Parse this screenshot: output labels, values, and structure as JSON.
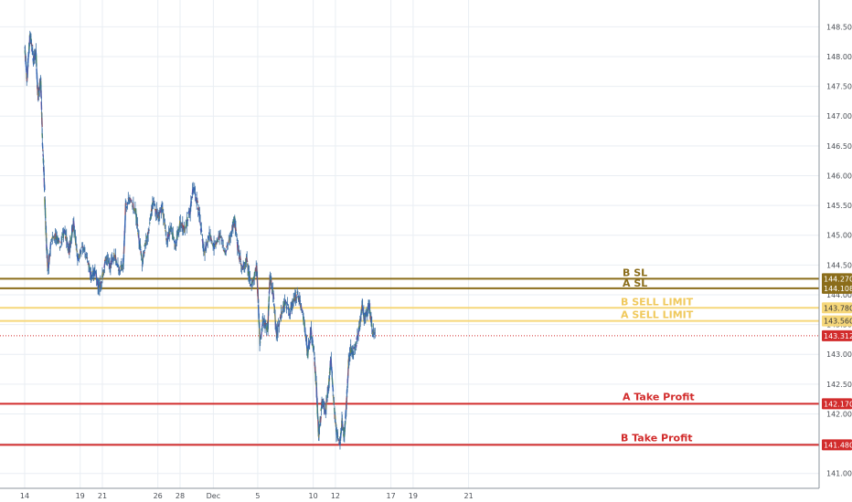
{
  "chart_data": {
    "type": "line",
    "x_tick_labels": [
      "14",
      "19",
      "21",
      "26",
      "28",
      "Dec",
      "5",
      "10",
      "12",
      "17",
      "19",
      "21"
    ],
    "y_tick_labels": [
      "148.500",
      "148.000",
      "147.500",
      "147.000",
      "146.500",
      "146.000",
      "145.500",
      "145.000",
      "144.500",
      "144.000",
      "143.500",
      "143.000",
      "142.500",
      "142.000",
      "141.500",
      "141.000"
    ],
    "ylim": [
      140.75,
      148.95
    ],
    "grid": true,
    "current_price": {
      "value": 143.312,
      "label": "143.312",
      "color": "#d22c2c"
    },
    "levels": [
      {
        "name": "B SL",
        "value": 144.27,
        "tag": "144.270",
        "color": "#8b6d1a"
      },
      {
        "name": "A SL",
        "value": 144.108,
        "tag": "144.108",
        "color": "#8b6d1a"
      },
      {
        "name": "B SELL LIMIT",
        "value": 143.78,
        "tag": "143.780",
        "color": "#f6d77a"
      },
      {
        "name": "A SELL LIMIT",
        "value": 143.56,
        "tag": "143.560",
        "color": "#f6d77a"
      },
      {
        "name": "A Take Profit",
        "value": 142.17,
        "tag": "142.170",
        "color": "#d22c2c"
      },
      {
        "name": "B Take Profit",
        "value": 141.48,
        "tag": "141.480",
        "color": "#d22c2c"
      }
    ],
    "series": [
      {
        "price_path": [
          [
            14,
            148.2
          ],
          [
            14.2,
            147.6
          ],
          [
            14.5,
            148.4
          ],
          [
            14.8,
            147.9
          ],
          [
            15.0,
            148.1
          ],
          [
            15.2,
            147.3
          ],
          [
            15.45,
            147.6
          ],
          [
            15.6,
            146.6
          ],
          [
            15.75,
            146.0
          ],
          [
            15.9,
            145.1
          ],
          [
            16.1,
            144.4
          ],
          [
            16.4,
            144.9
          ],
          [
            16.8,
            145.0
          ],
          [
            17.2,
            144.8
          ],
          [
            17.6,
            145.1
          ],
          [
            18.0,
            144.7
          ],
          [
            18.4,
            145.2
          ],
          [
            18.8,
            144.6
          ],
          [
            19.2,
            144.8
          ],
          [
            19.6,
            144.6
          ],
          [
            20.0,
            144.3
          ],
          [
            20.3,
            144.4
          ],
          [
            20.7,
            144.1
          ],
          [
            20.9,
            144.2
          ],
          [
            21.3,
            144.6
          ],
          [
            21.7,
            144.5
          ],
          [
            22.1,
            144.7
          ],
          [
            22.5,
            144.4
          ],
          [
            22.9,
            144.5
          ],
          [
            23.1,
            145.5
          ],
          [
            23.5,
            145.6
          ],
          [
            24.0,
            145.4
          ],
          [
            24.4,
            144.8
          ],
          [
            24.6,
            144.5
          ],
          [
            24.9,
            144.9
          ],
          [
            25.3,
            145.2
          ],
          [
            25.6,
            145.6
          ],
          [
            26.0,
            145.3
          ],
          [
            26.4,
            145.5
          ],
          [
            26.8,
            144.9
          ],
          [
            27.2,
            145.1
          ],
          [
            27.6,
            144.8
          ],
          [
            28.0,
            145.2
          ],
          [
            28.4,
            145.1
          ],
          [
            28.9,
            145.4
          ],
          [
            29.2,
            145.8
          ],
          [
            29.6,
            145.5
          ],
          [
            29.9,
            145.1
          ],
          [
            30.2,
            144.7
          ],
          [
            30.6,
            145.0
          ],
          [
            31.1,
            144.8
          ],
          [
            31.6,
            145.0
          ],
          [
            32.1,
            144.7
          ],
          [
            32.6,
            145.0
          ],
          [
            32.9,
            145.3
          ],
          [
            33.2,
            144.8
          ],
          [
            33.6,
            144.4
          ],
          [
            34.0,
            144.6
          ],
          [
            34.4,
            144.1
          ],
          [
            34.9,
            144.5
          ],
          [
            35.2,
            143.2
          ],
          [
            35.5,
            143.6
          ],
          [
            35.9,
            143.4
          ],
          [
            36.1,
            144.3
          ],
          [
            36.4,
            144.0
          ],
          [
            36.7,
            143.3
          ],
          [
            37.0,
            143.6
          ],
          [
            37.4,
            143.9
          ],
          [
            37.9,
            143.7
          ],
          [
            38.2,
            143.9
          ],
          [
            38.6,
            144.0
          ],
          [
            38.9,
            143.8
          ],
          [
            39.2,
            143.5
          ],
          [
            39.5,
            143.0
          ],
          [
            39.8,
            143.4
          ],
          [
            40.1,
            143.0
          ],
          [
            40.3,
            142.4
          ],
          [
            40.5,
            141.6
          ],
          [
            40.8,
            142.2
          ],
          [
            41.1,
            142.0
          ],
          [
            41.4,
            142.5
          ],
          [
            41.6,
            142.9
          ],
          [
            41.9,
            142.1
          ],
          [
            42.1,
            141.7
          ],
          [
            42.4,
            141.5
          ],
          [
            42.6,
            141.9
          ],
          [
            42.8,
            141.6
          ],
          [
            43.0,
            142.2
          ],
          [
            43.2,
            142.9
          ],
          [
            43.4,
            143.1
          ],
          [
            43.6,
            143.0
          ],
          [
            43.9,
            143.2
          ],
          [
            44.2,
            143.5
          ],
          [
            44.4,
            143.8
          ],
          [
            44.6,
            143.6
          ],
          [
            44.8,
            143.7
          ],
          [
            45.1,
            143.8
          ],
          [
            45.3,
            143.4
          ],
          [
            45.6,
            143.3
          ]
        ]
      }
    ]
  }
}
